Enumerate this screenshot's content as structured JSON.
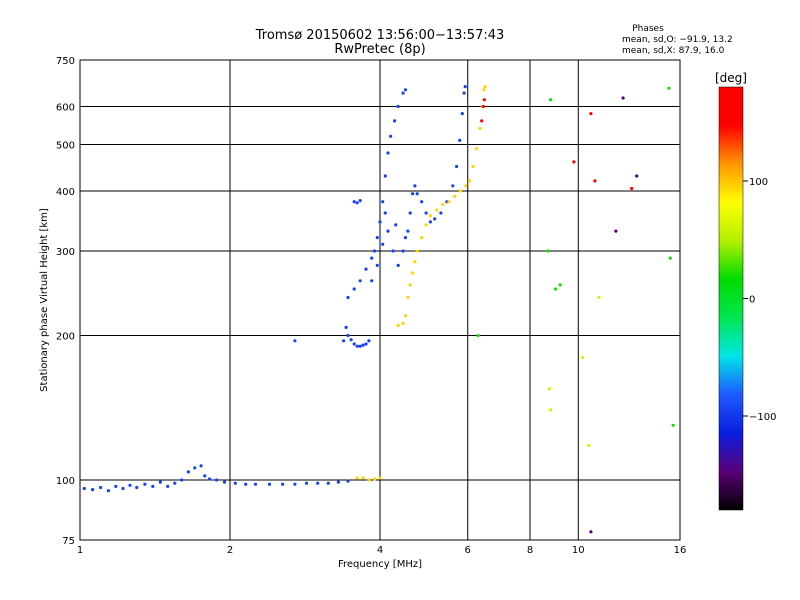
{
  "chart_data": {
    "type": "scatter",
    "title_line1": "Tromsø 20150602 13:56:00−13:57:43",
    "title_line2": "RwPretec (8p)",
    "legend": {
      "title": "Phases",
      "line1": "mean, sd,O: −91.9, 13.2",
      "line2": "mean, sd,X:  87.9, 16.0"
    },
    "xlabel": "Frequency [MHz]",
    "ylabel": "Stationary phase Virtual Height [km]",
    "x_scale": "log",
    "y_scale": "log",
    "xlim": [
      1,
      16
    ],
    "ylim": [
      75,
      750
    ],
    "x_ticks": [
      1,
      2,
      4,
      6,
      8,
      10,
      16
    ],
    "x_tick_labels": [
      "1",
      "2",
      "4",
      "6",
      "8",
      "10",
      "16"
    ],
    "y_ticks": [
      75,
      100,
      200,
      300,
      400,
      500,
      600,
      750
    ],
    "y_tick_labels": [
      "75",
      "100",
      "200",
      "300",
      "400",
      "500",
      "600",
      "750"
    ],
    "grid": true,
    "colorbar": {
      "label": "[deg]",
      "range": [
        -180,
        180
      ],
      "ticks": [
        100,
        0,
        -100
      ],
      "tick_labels": [
        "100",
        "0",
        "−100"
      ],
      "stops": [
        "#000000",
        "#5a0078",
        "#0a1ee0",
        "#1e5aff",
        "#00e6e6",
        "#00e650",
        "#00dc00",
        "#b4f000",
        "#ffff00",
        "#ff9600",
        "#ff0000",
        "#ff0000"
      ]
    },
    "series": [
      {
        "phase": -95,
        "points": [
          [
            1.02,
            96
          ],
          [
            1.06,
            95.5
          ],
          [
            1.1,
            96.5
          ],
          [
            1.14,
            95
          ],
          [
            1.18,
            97
          ],
          [
            1.22,
            96
          ],
          [
            1.26,
            97.5
          ],
          [
            1.3,
            96.5
          ],
          [
            1.35,
            98
          ],
          [
            1.4,
            97
          ],
          [
            1.45,
            99
          ],
          [
            1.5,
            97
          ],
          [
            1.55,
            98.5
          ],
          [
            1.6,
            100
          ],
          [
            1.65,
            104
          ],
          [
            1.7,
            106
          ],
          [
            1.75,
            107
          ],
          [
            1.78,
            102
          ],
          [
            1.82,
            100.5
          ],
          [
            1.88,
            100
          ],
          [
            1.95,
            99
          ],
          [
            2.05,
            98.5
          ],
          [
            2.15,
            98
          ],
          [
            2.25,
            98
          ],
          [
            2.4,
            98
          ],
          [
            2.55,
            98
          ],
          [
            2.7,
            98
          ],
          [
            2.85,
            98.5
          ],
          [
            3.0,
            98.5
          ],
          [
            3.15,
            98.5
          ],
          [
            3.3,
            99
          ],
          [
            3.45,
            99.5
          ],
          [
            3.38,
            195
          ],
          [
            3.42,
            208
          ],
          [
            3.45,
            200
          ],
          [
            3.5,
            196
          ],
          [
            3.55,
            192
          ],
          [
            3.6,
            190
          ],
          [
            3.65,
            190
          ],
          [
            3.7,
            191
          ],
          [
            3.75,
            192
          ],
          [
            3.8,
            195
          ],
          [
            3.45,
            240
          ],
          [
            3.55,
            250
          ],
          [
            3.65,
            260
          ],
          [
            3.75,
            275
          ],
          [
            3.85,
            290
          ],
          [
            3.9,
            300
          ],
          [
            3.95,
            320
          ],
          [
            4.0,
            345
          ],
          [
            4.05,
            380
          ],
          [
            4.1,
            430
          ],
          [
            4.15,
            480
          ],
          [
            4.2,
            520
          ],
          [
            4.28,
            560
          ],
          [
            4.35,
            600
          ],
          [
            4.45,
            640
          ],
          [
            4.5,
            650
          ],
          [
            3.85,
            260
          ],
          [
            3.95,
            280
          ],
          [
            4.05,
            310
          ],
          [
            4.15,
            330
          ],
          [
            4.25,
            300
          ],
          [
            4.35,
            280
          ],
          [
            4.45,
            300
          ],
          [
            4.55,
            330
          ],
          [
            4.6,
            360
          ],
          [
            4.65,
            395
          ],
          [
            4.7,
            410
          ],
          [
            4.75,
            395
          ],
          [
            4.85,
            380
          ],
          [
            4.95,
            360
          ],
          [
            5.05,
            345
          ],
          [
            5.15,
            350
          ],
          [
            5.3,
            360
          ],
          [
            5.45,
            380
          ],
          [
            5.6,
            410
          ],
          [
            5.7,
            450
          ],
          [
            5.78,
            510
          ],
          [
            5.85,
            580
          ],
          [
            5.9,
            640
          ],
          [
            5.93,
            660
          ],
          [
            3.55,
            380
          ],
          [
            3.6,
            378
          ],
          [
            3.65,
            382
          ],
          [
            4.1,
            360
          ],
          [
            4.3,
            340
          ],
          [
            4.5,
            320
          ],
          [
            2.7,
            195
          ]
        ]
      },
      {
        "phase": 95,
        "points": [
          [
            3.6,
            101
          ],
          [
            3.7,
            101
          ],
          [
            3.8,
            100
          ],
          [
            3.9,
            100.5
          ],
          [
            4.0,
            101
          ],
          [
            4.35,
            210
          ],
          [
            4.45,
            212
          ],
          [
            4.5,
            220
          ],
          [
            4.55,
            240
          ],
          [
            4.6,
            255
          ],
          [
            4.65,
            270
          ],
          [
            4.7,
            285
          ],
          [
            4.75,
            300
          ],
          [
            4.85,
            320
          ],
          [
            4.95,
            340
          ],
          [
            5.05,
            355
          ],
          [
            5.2,
            365
          ],
          [
            5.35,
            375
          ],
          [
            5.5,
            380
          ],
          [
            5.65,
            390
          ],
          [
            5.8,
            400
          ],
          [
            5.95,
            410
          ],
          [
            6.05,
            420
          ],
          [
            6.15,
            450
          ],
          [
            6.25,
            490
          ],
          [
            6.35,
            540
          ],
          [
            6.42,
            600
          ],
          [
            6.47,
            650
          ],
          [
            6.5,
            660
          ]
        ]
      },
      {
        "phase": 150,
        "points": [
          [
            6.4,
            560
          ],
          [
            6.45,
            600
          ],
          [
            6.48,
            620
          ],
          [
            9.8,
            460
          ],
          [
            10.8,
            420
          ],
          [
            12.8,
            405
          ],
          [
            10.6,
            580
          ]
        ]
      },
      {
        "phase": 20,
        "points": [
          [
            8.8,
            620
          ],
          [
            9.0,
            250
          ],
          [
            9.2,
            255
          ],
          [
            15.2,
            655
          ],
          [
            15.3,
            290
          ],
          [
            15.5,
            130
          ],
          [
            8.7,
            300
          ],
          [
            6.3,
            200
          ]
        ]
      },
      {
        "phase": 60,
        "points": [
          [
            8.75,
            155
          ],
          [
            8.8,
            140
          ],
          [
            10.2,
            180
          ],
          [
            10.5,
            118
          ],
          [
            11.0,
            240
          ]
        ]
      },
      {
        "phase": -150,
        "points": [
          [
            11.9,
            330
          ],
          [
            12.3,
            625
          ],
          [
            10.6,
            78
          ],
          [
            13.1,
            430
          ]
        ]
      }
    ]
  }
}
